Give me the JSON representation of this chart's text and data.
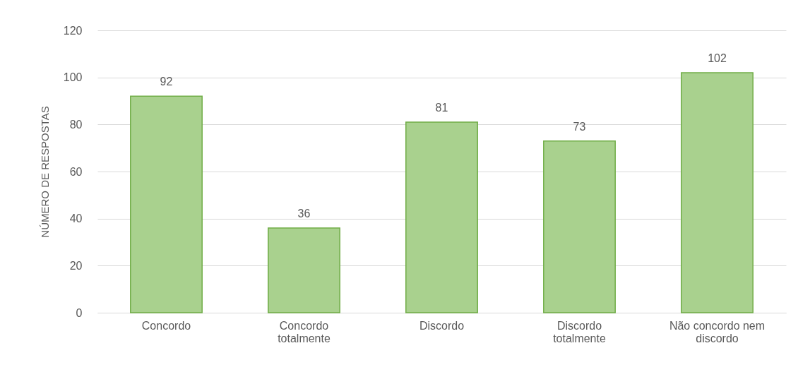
{
  "chart_data": {
    "type": "bar",
    "ylabel": "NÚMERO DE RESPOSTAS",
    "categories": [
      "Concordo",
      "Concordo totalmente",
      "Discordo",
      "Discordo totalmente",
      "Não concordo nem discordo"
    ],
    "values": [
      92,
      36,
      81,
      73,
      102
    ],
    "color": "#a9d18e",
    "ylim": [
      0,
      120
    ],
    "yticks": [
      0,
      20,
      40,
      60,
      80,
      100,
      120
    ],
    "grid": "y",
    "data_labels": true
  }
}
